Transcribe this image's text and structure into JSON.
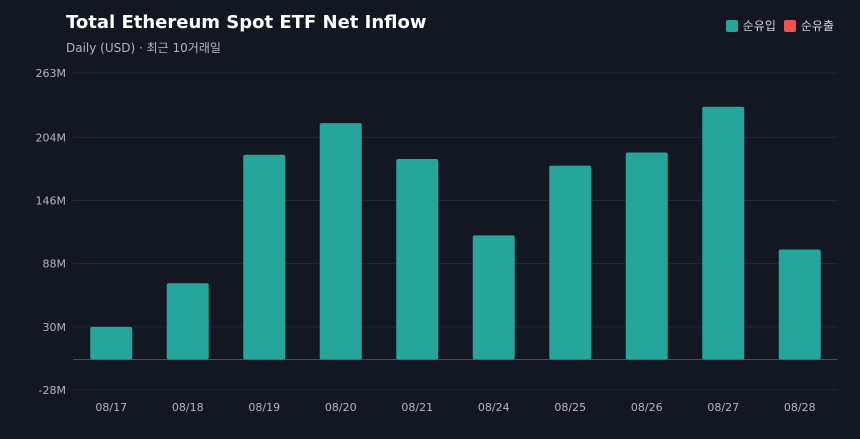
{
  "chart_data": {
    "type": "bar",
    "title": "Total Ethereum Spot ETF Net Inflow",
    "subtitle": "Daily (USD) · 최근 10거래일",
    "categories": [
      "08/17",
      "08/18",
      "08/19",
      "08/20",
      "08/21",
      "08/24",
      "08/25",
      "08/26",
      "08/27",
      "08/28"
    ],
    "series": [
      {
        "name": "순유입",
        "color": "#26a69a",
        "values": [
          30,
          70,
          188,
          217,
          184,
          114,
          178,
          190,
          232,
          101
        ]
      }
    ],
    "legend": [
      {
        "label": "순유입",
        "color": "#26a69a"
      },
      {
        "label": "순유출",
        "color": "#ef5350"
      }
    ],
    "ylim": [
      -28,
      263
    ],
    "yticks": [
      263,
      204,
      146,
      88,
      30,
      -28
    ],
    "ytick_labels": [
      "263M",
      "204M",
      "146M",
      "88M",
      "30M",
      "-28M"
    ],
    "grid": true,
    "legend_position": "top-right"
  }
}
